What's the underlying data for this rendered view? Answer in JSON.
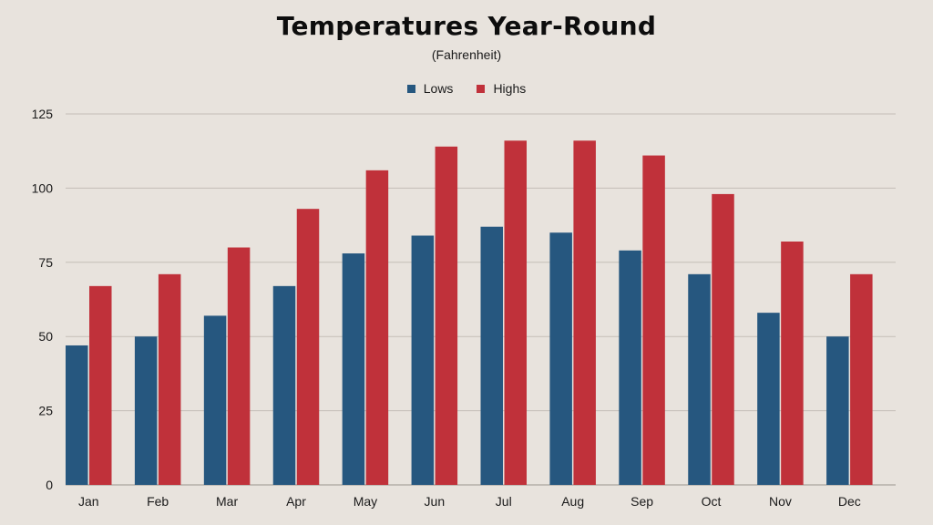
{
  "chart_data": {
    "type": "bar",
    "title": "Temperatures Year-Round",
    "subtitle": "(Fahrenheit)",
    "xlabel": "",
    "ylabel": "",
    "categories": [
      "Jan",
      "Feb",
      "Mar",
      "Apr",
      "May",
      "Jun",
      "Jul",
      "Aug",
      "Sep",
      "Oct",
      "Nov",
      "Dec"
    ],
    "series": [
      {
        "name": "Lows",
        "color": "#26577f",
        "values": [
          47,
          50,
          57,
          67,
          78,
          84,
          87,
          85,
          79,
          71,
          58,
          50
        ]
      },
      {
        "name": "Highs",
        "color": "#c0313a",
        "values": [
          67,
          71,
          80,
          93,
          106,
          114,
          116,
          116,
          111,
          98,
          82,
          71
        ]
      }
    ],
    "ylim": [
      0,
      125
    ],
    "yticks": [
      0,
      25,
      50,
      75,
      100,
      125
    ],
    "grid": true,
    "legend_position": "top-center"
  }
}
